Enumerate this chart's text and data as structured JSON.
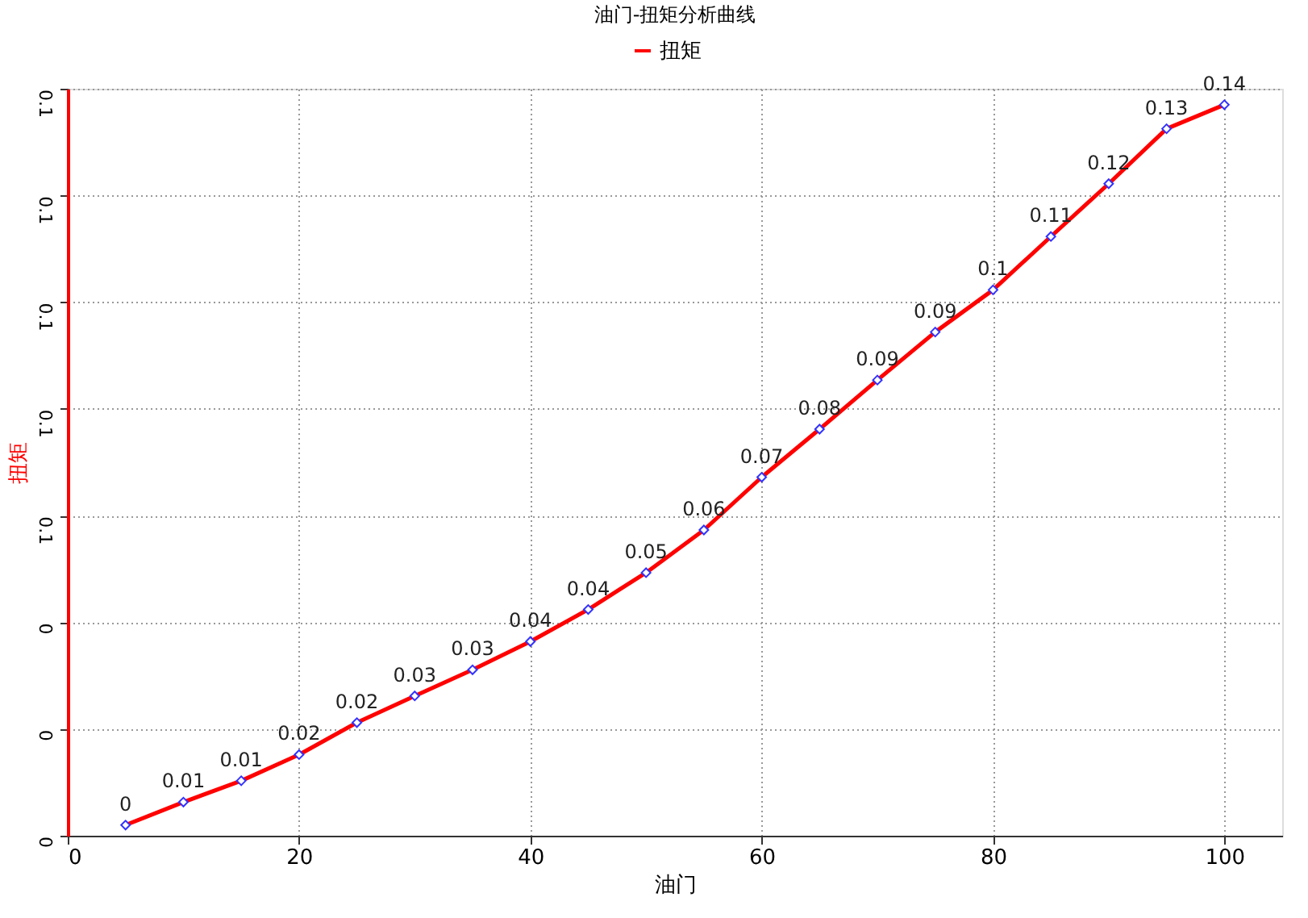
{
  "chart_data": {
    "type": "line",
    "title": "油门-扭矩分析曲线",
    "xlabel": "油门",
    "ylabel": "扭矩",
    "x": [
      5,
      10,
      15,
      20,
      25,
      30,
      35,
      40,
      45,
      50,
      55,
      60,
      65,
      70,
      75,
      80,
      85,
      90,
      95,
      100
    ],
    "series": [
      {
        "name": "扭矩",
        "color": "#ff0000",
        "values": [
          0.002,
          0.0063,
          0.0103,
          0.0152,
          0.0212,
          0.0262,
          0.0311,
          0.0364,
          0.0424,
          0.0493,
          0.0573,
          0.0672,
          0.0762,
          0.0854,
          0.0944,
          0.1023,
          0.1123,
          0.1222,
          0.1325,
          0.137
        ],
        "value_labels": [
          "0",
          "0.01",
          "0.01",
          "0.02",
          "0.02",
          "0.03",
          "0.03",
          "0.04",
          "0.04",
          "0.05",
          "0.06",
          "0.07",
          "0.08",
          "0.09",
          "0.09",
          "0.1",
          "0.11",
          "0.12",
          "0.13",
          "0.14"
        ]
      }
    ],
    "xlim": [
      0,
      105
    ],
    "xticks": [
      0,
      20,
      40,
      60,
      80,
      100
    ],
    "ylim": [
      0,
      0.14
    ],
    "yticks": [
      {
        "value": 0,
        "label": "0"
      },
      {
        "value": 0.02,
        "label": "0"
      },
      {
        "value": 0.04,
        "label": "0"
      },
      {
        "value": 0.06,
        "label": "0.1"
      },
      {
        "value": 0.08,
        "label": "0.1"
      },
      {
        "value": 0.1,
        "label": "0.1"
      },
      {
        "value": 0.12,
        "label": "0.1"
      },
      {
        "value": 0.14,
        "label": "0.1"
      }
    ],
    "grid": true,
    "legend": "top",
    "marker": "diamond",
    "line_style": "solid"
  }
}
